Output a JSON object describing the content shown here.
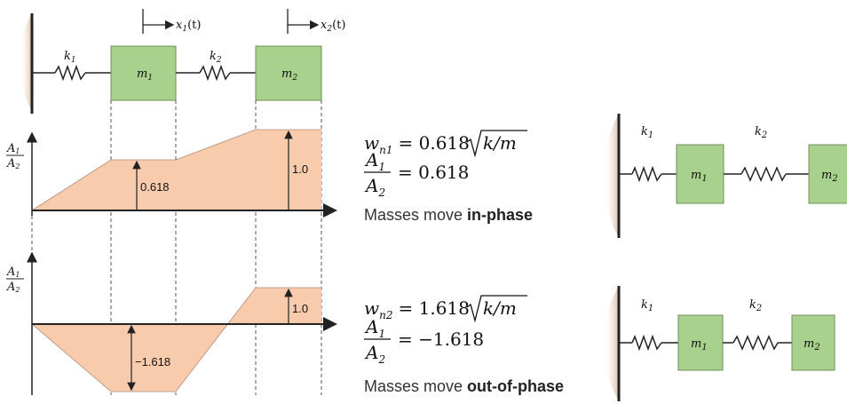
{
  "colors": {
    "mass_fill": "#a9d18e",
    "mass_stroke": "#6c8f55",
    "mode_fill": "#f8cbad",
    "wall_shade": "#d9b79a",
    "line": "#222222"
  },
  "system": {
    "k1": "k",
    "k1_sub": "1",
    "k2": "k",
    "k2_sub": "2",
    "m1": "m",
    "m1_sub": "1",
    "m2": "m",
    "m2_sub": "2",
    "x1": "x",
    "x1_sub": "1",
    "x1_arg": "(t)",
    "x2": "x",
    "x2_sub": "2",
    "x2_arg": "(t)"
  },
  "mode1": {
    "ratio_num": "A",
    "ratio_num_sub": "1",
    "ratio_den": "A",
    "ratio_den_sub": "2",
    "amp1_label": "0.618",
    "amp2_label": "1.0",
    "amp1": 0.618,
    "amp2": 1.0,
    "freq_sym": "w",
    "freq_sub": "n1",
    "freq_coef": "0.618",
    "freq_rad": "k/m",
    "ratio_value": "0.618",
    "caption_prefix": "Masses move ",
    "caption_bold": "in-phase"
  },
  "mode2": {
    "ratio_num": "A",
    "ratio_num_sub": "1",
    "ratio_den": "A",
    "ratio_den_sub": "2",
    "amp1_label": "−1.618",
    "amp2_label": "1.0",
    "amp1": -1.618,
    "amp2": 1.0,
    "freq_sym": "w",
    "freq_sub": "n2",
    "freq_coef": "1.618",
    "freq_rad": "k/m",
    "ratio_value": "−1.618",
    "caption_prefix": "Masses move ",
    "caption_bold": "out-of-phase"
  }
}
